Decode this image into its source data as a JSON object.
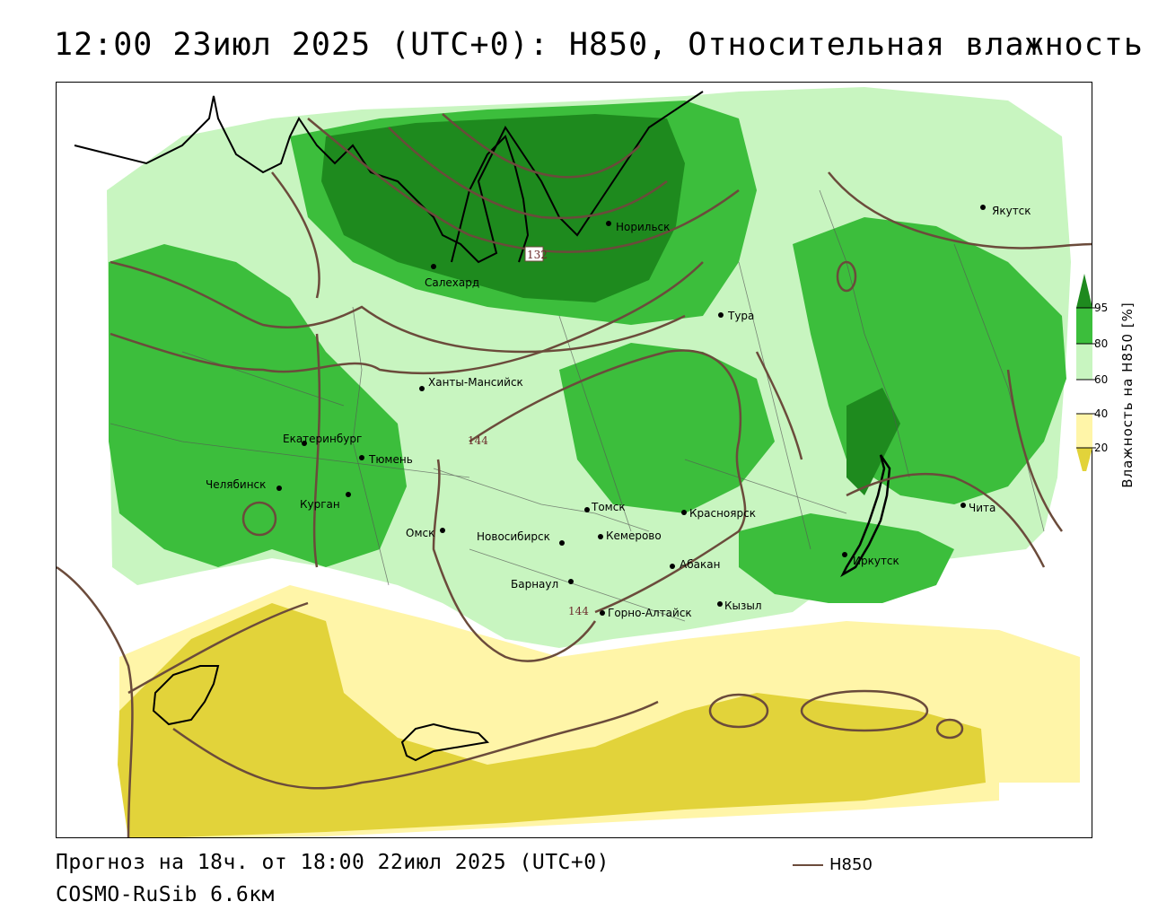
{
  "title": "12:00 23июл 2025 (UTC+0): H850, Относительная влажность",
  "footer": {
    "forecast": "Прогноз на 18ч. от 18:00 22июл 2025 (UTC+0)",
    "model": "COSMO-RuSib 6.6км",
    "legend_label": "H850"
  },
  "colors": {
    "humidity_95": "#1e8a1e",
    "humidity_80": "#3cbe3c",
    "humidity_60": "#c8f5c0",
    "humidity_40": "#ffffff",
    "humidity_20": "#fff5a8",
    "humidity_lt20": "#e2d33a",
    "contour": "#6b4b3b",
    "coast": "#000000"
  },
  "colorbar": {
    "label": "Влажность на H850 [%]",
    "ticks": [
      "95",
      "80",
      "60",
      "40",
      "20"
    ]
  },
  "contour_labels": [
    "132",
    "144",
    "144"
  ],
  "cities": [
    {
      "name": "Якутск"
    },
    {
      "name": "Норильск"
    },
    {
      "name": "Салехард"
    },
    {
      "name": "Тура"
    },
    {
      "name": "Ханты-Мансийск"
    },
    {
      "name": "Екатеринбург"
    },
    {
      "name": "Тюмень"
    },
    {
      "name": "Челябинск"
    },
    {
      "name": "Курган"
    },
    {
      "name": "Омск"
    },
    {
      "name": "Новосибирск"
    },
    {
      "name": "Томск"
    },
    {
      "name": "Кемерово"
    },
    {
      "name": "Красноярск"
    },
    {
      "name": "Барнаул"
    },
    {
      "name": "Абакан"
    },
    {
      "name": "Горно-Алтайск"
    },
    {
      "name": "Кызыл"
    },
    {
      "name": "Иркутск"
    },
    {
      "name": "Чита"
    }
  ]
}
